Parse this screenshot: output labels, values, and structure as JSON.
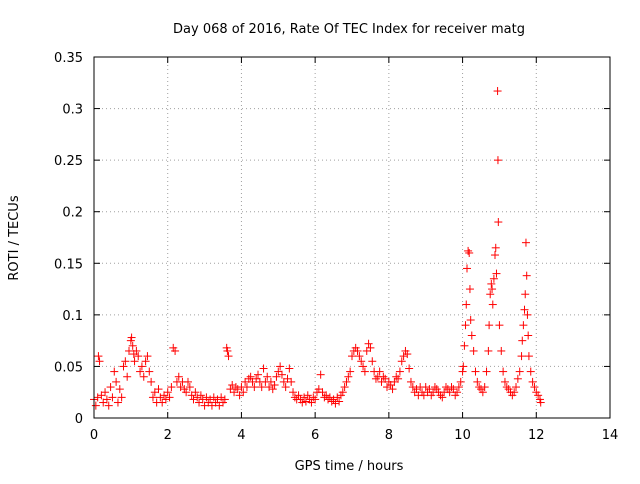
{
  "chart_data": {
    "type": "scatter",
    "title": "Day 068 of 2016, Rate Of TEC Index for receiver matg",
    "xlabel": "GPS time / hours",
    "ylabel": "ROTI / TECUs",
    "xlim": [
      0,
      14
    ],
    "ylim": [
      0,
      0.35
    ],
    "x_ticks": [
      0,
      2,
      4,
      6,
      8,
      10,
      12,
      14
    ],
    "x_tick_labels": [
      "0",
      "2",
      "4",
      "6",
      "8",
      "10",
      "12",
      "14"
    ],
    "y_ticks": [
      0,
      0.05,
      0.1,
      0.15,
      0.2,
      0.25,
      0.3,
      0.35
    ],
    "y_tick_labels": [
      "0",
      "0.05",
      "0.1",
      "0.15",
      "0.2",
      "0.25",
      "0.3",
      "0.35"
    ],
    "grid": true,
    "marker": "+",
    "color": "#ff0000",
    "series": [
      {
        "name": "ROTI",
        "points": [
          [
            0.0,
            0.018
          ],
          [
            0.05,
            0.012
          ],
          [
            0.1,
            0.02
          ],
          [
            0.12,
            0.06
          ],
          [
            0.15,
            0.055
          ],
          [
            0.2,
            0.022
          ],
          [
            0.25,
            0.015
          ],
          [
            0.3,
            0.025
          ],
          [
            0.35,
            0.018
          ],
          [
            0.4,
            0.012
          ],
          [
            0.45,
            0.03
          ],
          [
            0.5,
            0.02
          ],
          [
            0.55,
            0.045
          ],
          [
            0.6,
            0.035
          ],
          [
            0.65,
            0.015
          ],
          [
            0.7,
            0.028
          ],
          [
            0.75,
            0.02
          ],
          [
            0.8,
            0.05
          ],
          [
            0.85,
            0.055
          ],
          [
            0.9,
            0.04
          ],
          [
            0.95,
            0.065
          ],
          [
            1.0,
            0.075
          ],
          [
            1.02,
            0.078
          ],
          [
            1.05,
            0.07
          ],
          [
            1.08,
            0.062
          ],
          [
            1.1,
            0.055
          ],
          [
            1.15,
            0.065
          ],
          [
            1.2,
            0.06
          ],
          [
            1.25,
            0.045
          ],
          [
            1.3,
            0.05
          ],
          [
            1.35,
            0.04
          ],
          [
            1.4,
            0.055
          ],
          [
            1.45,
            0.06
          ],
          [
            1.5,
            0.045
          ],
          [
            1.55,
            0.035
          ],
          [
            1.6,
            0.02
          ],
          [
            1.65,
            0.025
          ],
          [
            1.7,
            0.015
          ],
          [
            1.75,
            0.028
          ],
          [
            1.8,
            0.02
          ],
          [
            1.85,
            0.015
          ],
          [
            1.9,
            0.022
          ],
          [
            1.95,
            0.018
          ],
          [
            2.0,
            0.025
          ],
          [
            2.05,
            0.02
          ],
          [
            2.1,
            0.03
          ],
          [
            2.15,
            0.068
          ],
          [
            2.2,
            0.065
          ],
          [
            2.25,
            0.035
          ],
          [
            2.3,
            0.04
          ],
          [
            2.35,
            0.03
          ],
          [
            2.4,
            0.035
          ],
          [
            2.45,
            0.028
          ],
          [
            2.5,
            0.025
          ],
          [
            2.55,
            0.035
          ],
          [
            2.6,
            0.03
          ],
          [
            2.65,
            0.022
          ],
          [
            2.7,
            0.018
          ],
          [
            2.75,
            0.025
          ],
          [
            2.8,
            0.02
          ],
          [
            2.85,
            0.015
          ],
          [
            2.9,
            0.022
          ],
          [
            2.95,
            0.018
          ],
          [
            3.0,
            0.012
          ],
          [
            3.05,
            0.02
          ],
          [
            3.1,
            0.015
          ],
          [
            3.15,
            0.018
          ],
          [
            3.2,
            0.012
          ],
          [
            3.25,
            0.02
          ],
          [
            3.3,
            0.015
          ],
          [
            3.35,
            0.018
          ],
          [
            3.4,
            0.012
          ],
          [
            3.45,
            0.02
          ],
          [
            3.5,
            0.015
          ],
          [
            3.55,
            0.018
          ],
          [
            3.6,
            0.068
          ],
          [
            3.62,
            0.065
          ],
          [
            3.65,
            0.06
          ],
          [
            3.7,
            0.028
          ],
          [
            3.75,
            0.032
          ],
          [
            3.8,
            0.025
          ],
          [
            3.85,
            0.03
          ],
          [
            3.9,
            0.028
          ],
          [
            3.95,
            0.022
          ],
          [
            4.0,
            0.03
          ],
          [
            4.05,
            0.025
          ],
          [
            4.1,
            0.035
          ],
          [
            4.15,
            0.03
          ],
          [
            4.2,
            0.038
          ],
          [
            4.25,
            0.04
          ],
          [
            4.3,
            0.035
          ],
          [
            4.35,
            0.03
          ],
          [
            4.4,
            0.038
          ],
          [
            4.45,
            0.042
          ],
          [
            4.5,
            0.035
          ],
          [
            4.55,
            0.03
          ],
          [
            4.6,
            0.048
          ],
          [
            4.65,
            0.035
          ],
          [
            4.7,
            0.04
          ],
          [
            4.75,
            0.03
          ],
          [
            4.8,
            0.035
          ],
          [
            4.85,
            0.028
          ],
          [
            4.9,
            0.032
          ],
          [
            4.95,
            0.04
          ],
          [
            5.0,
            0.045
          ],
          [
            5.05,
            0.05
          ],
          [
            5.1,
            0.042
          ],
          [
            5.15,
            0.035
          ],
          [
            5.2,
            0.03
          ],
          [
            5.25,
            0.038
          ],
          [
            5.3,
            0.048
          ],
          [
            5.35,
            0.035
          ],
          [
            5.4,
            0.025
          ],
          [
            5.45,
            0.02
          ],
          [
            5.5,
            0.018
          ],
          [
            5.55,
            0.022
          ],
          [
            5.6,
            0.018
          ],
          [
            5.65,
            0.015
          ],
          [
            5.7,
            0.02
          ],
          [
            5.75,
            0.016
          ],
          [
            5.8,
            0.022
          ],
          [
            5.85,
            0.018
          ],
          [
            5.9,
            0.015
          ],
          [
            5.95,
            0.02
          ],
          [
            6.0,
            0.018
          ],
          [
            6.05,
            0.025
          ],
          [
            6.1,
            0.028
          ],
          [
            6.15,
            0.042
          ],
          [
            6.2,
            0.025
          ],
          [
            6.25,
            0.02
          ],
          [
            6.3,
            0.022
          ],
          [
            6.35,
            0.018
          ],
          [
            6.4,
            0.02
          ],
          [
            6.45,
            0.016
          ],
          [
            6.5,
            0.018
          ],
          [
            6.55,
            0.014
          ],
          [
            6.6,
            0.02
          ],
          [
            6.65,
            0.016
          ],
          [
            6.7,
            0.022
          ],
          [
            6.75,
            0.025
          ],
          [
            6.8,
            0.03
          ],
          [
            6.85,
            0.035
          ],
          [
            6.9,
            0.04
          ],
          [
            6.95,
            0.045
          ],
          [
            7.0,
            0.06
          ],
          [
            7.05,
            0.065
          ],
          [
            7.1,
            0.068
          ],
          [
            7.15,
            0.065
          ],
          [
            7.2,
            0.06
          ],
          [
            7.25,
            0.055
          ],
          [
            7.3,
            0.05
          ],
          [
            7.35,
            0.045
          ],
          [
            7.4,
            0.065
          ],
          [
            7.45,
            0.072
          ],
          [
            7.5,
            0.068
          ],
          [
            7.55,
            0.055
          ],
          [
            7.6,
            0.045
          ],
          [
            7.65,
            0.038
          ],
          [
            7.7,
            0.04
          ],
          [
            7.75,
            0.045
          ],
          [
            7.8,
            0.035
          ],
          [
            7.85,
            0.04
          ],
          [
            7.9,
            0.038
          ],
          [
            7.95,
            0.03
          ],
          [
            8.0,
            0.035
          ],
          [
            8.05,
            0.032
          ],
          [
            8.1,
            0.028
          ],
          [
            8.15,
            0.035
          ],
          [
            8.2,
            0.04
          ],
          [
            8.25,
            0.038
          ],
          [
            8.3,
            0.045
          ],
          [
            8.35,
            0.055
          ],
          [
            8.4,
            0.06
          ],
          [
            8.45,
            0.065
          ],
          [
            8.5,
            0.062
          ],
          [
            8.55,
            0.048
          ],
          [
            8.6,
            0.035
          ],
          [
            8.65,
            0.03
          ],
          [
            8.7,
            0.025
          ],
          [
            8.75,
            0.028
          ],
          [
            8.8,
            0.022
          ],
          [
            8.85,
            0.03
          ],
          [
            8.9,
            0.025
          ],
          [
            8.95,
            0.022
          ],
          [
            9.0,
            0.03
          ],
          [
            9.05,
            0.025
          ],
          [
            9.1,
            0.028
          ],
          [
            9.15,
            0.022
          ],
          [
            9.2,
            0.025
          ],
          [
            9.25,
            0.03
          ],
          [
            9.3,
            0.028
          ],
          [
            9.35,
            0.025
          ],
          [
            9.4,
            0.022
          ],
          [
            9.45,
            0.02
          ],
          [
            9.5,
            0.025
          ],
          [
            9.55,
            0.03
          ],
          [
            9.6,
            0.028
          ],
          [
            9.65,
            0.025
          ],
          [
            9.7,
            0.03
          ],
          [
            9.75,
            0.028
          ],
          [
            9.8,
            0.022
          ],
          [
            9.85,
            0.025
          ],
          [
            9.9,
            0.03
          ],
          [
            9.95,
            0.035
          ],
          [
            10.0,
            0.045
          ],
          [
            10.02,
            0.05
          ],
          [
            10.05,
            0.07
          ],
          [
            10.08,
            0.09
          ],
          [
            10.1,
            0.11
          ],
          [
            10.12,
            0.145
          ],
          [
            10.15,
            0.162
          ],
          [
            10.18,
            0.16
          ],
          [
            10.2,
            0.125
          ],
          [
            10.22,
            0.095
          ],
          [
            10.25,
            0.08
          ],
          [
            10.3,
            0.065
          ],
          [
            10.35,
            0.045
          ],
          [
            10.4,
            0.035
          ],
          [
            10.45,
            0.03
          ],
          [
            10.5,
            0.028
          ],
          [
            10.55,
            0.025
          ],
          [
            10.6,
            0.03
          ],
          [
            10.65,
            0.045
          ],
          [
            10.7,
            0.065
          ],
          [
            10.72,
            0.09
          ],
          [
            10.75,
            0.12
          ],
          [
            10.78,
            0.13
          ],
          [
            10.8,
            0.125
          ],
          [
            10.82,
            0.11
          ],
          [
            10.85,
            0.135
          ],
          [
            10.88,
            0.158
          ],
          [
            10.9,
            0.165
          ],
          [
            10.92,
            0.14
          ],
          [
            10.95,
            0.317
          ],
          [
            10.96,
            0.25
          ],
          [
            10.97,
            0.19
          ],
          [
            11.0,
            0.09
          ],
          [
            11.05,
            0.065
          ],
          [
            11.1,
            0.045
          ],
          [
            11.15,
            0.035
          ],
          [
            11.2,
            0.03
          ],
          [
            11.25,
            0.028
          ],
          [
            11.3,
            0.025
          ],
          [
            11.35,
            0.022
          ],
          [
            11.4,
            0.025
          ],
          [
            11.45,
            0.03
          ],
          [
            11.5,
            0.038
          ],
          [
            11.55,
            0.045
          ],
          [
            11.6,
            0.06
          ],
          [
            11.62,
            0.075
          ],
          [
            11.65,
            0.09
          ],
          [
            11.68,
            0.105
          ],
          [
            11.7,
            0.12
          ],
          [
            11.72,
            0.17
          ],
          [
            11.74,
            0.138
          ],
          [
            11.76,
            0.1
          ],
          [
            11.78,
            0.08
          ],
          [
            11.8,
            0.06
          ],
          [
            11.85,
            0.045
          ],
          [
            11.9,
            0.035
          ],
          [
            11.95,
            0.03
          ],
          [
            12.0,
            0.025
          ],
          [
            12.05,
            0.022
          ],
          [
            12.1,
            0.018
          ],
          [
            12.12,
            0.015
          ]
        ]
      }
    ]
  }
}
